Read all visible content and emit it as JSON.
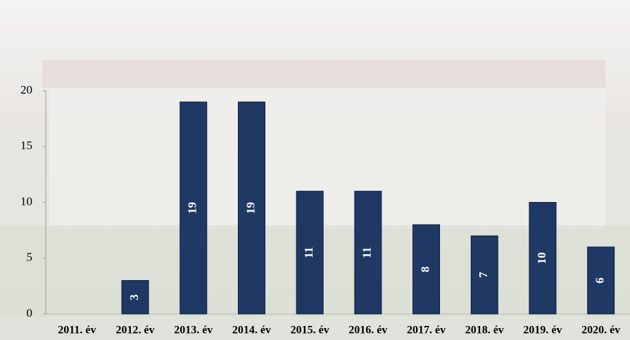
{
  "chart_data": {
    "type": "bar",
    "categories": [
      "2011. év",
      "2012. év",
      "2013. év",
      "2014. év",
      "2015. év",
      "2016. év",
      "2017. év",
      "2018. év",
      "2019. év",
      "2020. év"
    ],
    "values": [
      null,
      3,
      19,
      19,
      11,
      11,
      8,
      7,
      10,
      6
    ],
    "color": "#1f3864",
    "ylim": [
      0,
      20
    ],
    "yticks": [
      0,
      5,
      10,
      15,
      20
    ],
    "grid": false
  }
}
